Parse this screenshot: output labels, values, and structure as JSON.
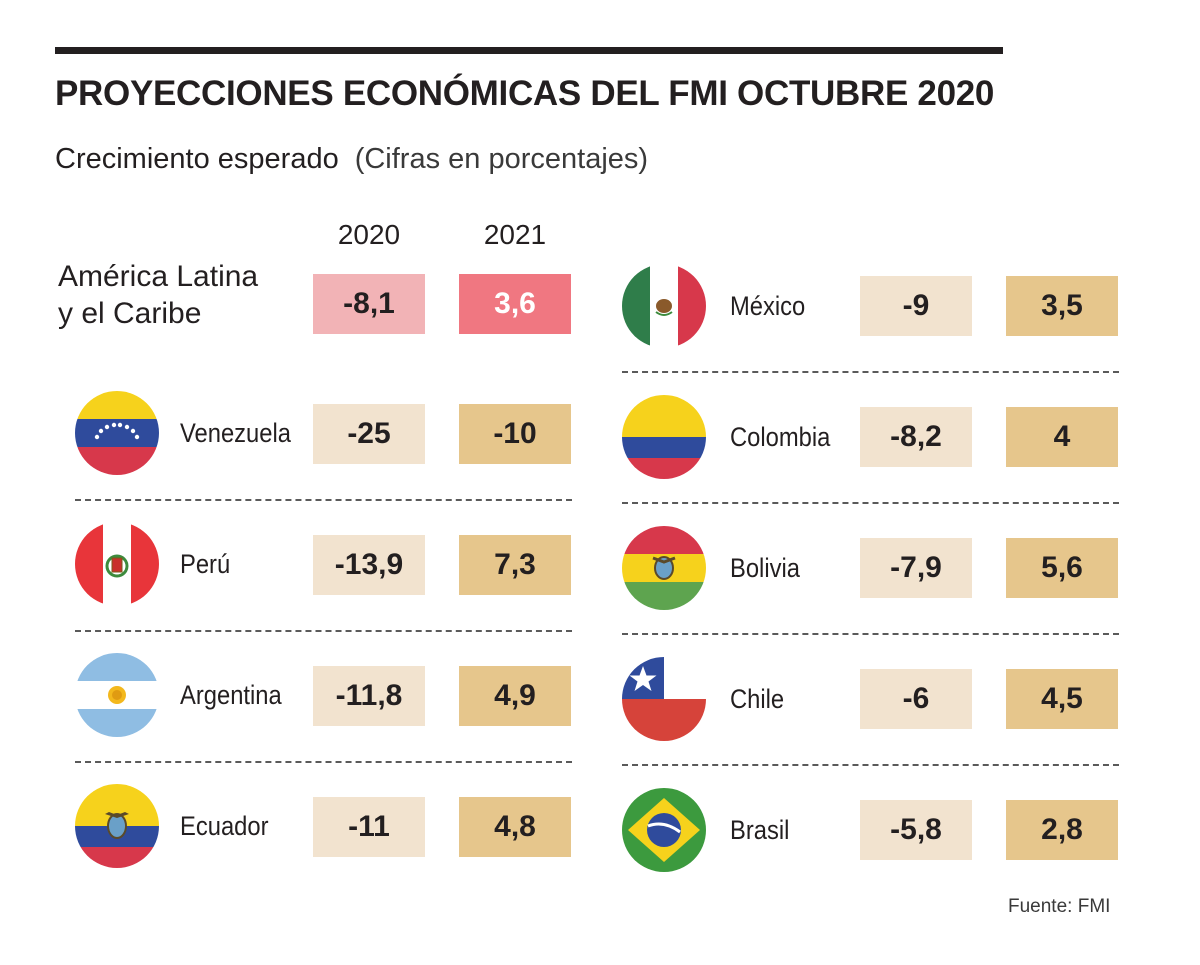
{
  "title": "PROYECCIONES ECONÓMICAS DEL FMI OCTUBRE 2020",
  "subtitle": "Crecimiento esperado",
  "subtitle_note": "(Cifras en porcentajes)",
  "source": "Fuente: FMI",
  "chart_data": {
    "type": "table",
    "title": "PROYECCIONES ECONÓMICAS DEL FMI OCTUBRE 2020",
    "subtitle": "Crecimiento esperado (Cifras en porcentajes)",
    "columns": [
      "2020",
      "2021"
    ],
    "region": {
      "line1": "América Latina",
      "line2": "y el Caribe",
      "v2020": "-8,1",
      "v2021": "3,6"
    },
    "rows": [
      {
        "country": "Venezuela",
        "v2020": "-25",
        "v2021": "-10",
        "flag": "venezuela-flag-icon"
      },
      {
        "country": "Perú",
        "v2020": "-13,9",
        "v2021": "7,3",
        "flag": "peru-flag-icon"
      },
      {
        "country": "Argentina",
        "v2020": "-11,8",
        "v2021": "4,9",
        "flag": "argentina-flag-icon"
      },
      {
        "country": "Ecuador",
        "v2020": "-11",
        "v2021": "4,8",
        "flag": "ecuador-flag-icon"
      },
      {
        "country": "México",
        "v2020": "-9",
        "v2021": "3,5",
        "flag": "mexico-flag-icon"
      },
      {
        "country": "Colombia",
        "v2020": "-8,2",
        "v2021": "4",
        "flag": "colombia-flag-icon"
      },
      {
        "country": "Bolivia",
        "v2020": "-7,9",
        "v2021": "5,6",
        "flag": "bolivia-flag-icon"
      },
      {
        "country": "Chile",
        "v2020": "-6",
        "v2021": "4,5",
        "flag": "chile-flag-icon"
      },
      {
        "country": "Brasil",
        "v2020": "-5,8",
        "v2021": "2,8",
        "flag": "brasil-flag-icon"
      }
    ]
  },
  "colors": {
    "cell_2020": "#f2e3cf",
    "cell_2021": "#e6c68c",
    "region_2020": "#f2b3b6",
    "region_2021": "#f07781"
  }
}
